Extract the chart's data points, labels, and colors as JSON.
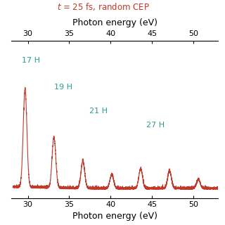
{
  "title": "Photon energy (eV)",
  "xlabel": "Photon energy (eV)",
  "xlim": [
    28,
    53
  ],
  "xticks": [
    30,
    35,
    40,
    45,
    50
  ],
  "annotation_text": "$t$ = 25 fs, random CEP",
  "annotation_color": "#c0392b",
  "harmonic_color": "#2a9d8f",
  "spectrum_color": "#c0392b",
  "background_color": "#ffffff",
  "base_energy": 1.745,
  "label_positions": [
    {
      "label": "17 H",
      "x": 29.3,
      "yf": 0.85
    },
    {
      "label": "19 H",
      "x": 33.2,
      "yf": 0.68
    },
    {
      "label": "21 H",
      "x": 37.4,
      "yf": 0.53
    },
    {
      "label": "27 H",
      "x": 44.3,
      "yf": 0.44
    }
  ]
}
